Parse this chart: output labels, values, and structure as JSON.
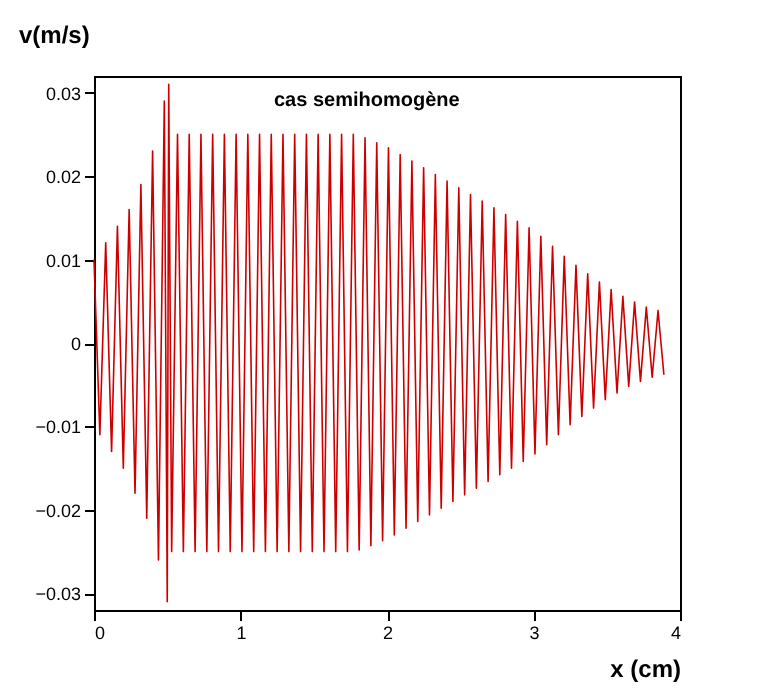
{
  "chart_data": {
    "type": "line",
    "xlabel": "x (cm)",
    "ylabel": "v(m/s)",
    "annotations": [
      "cas semihomogène"
    ],
    "xlim": [
      0,
      4
    ],
    "xticks": [
      0,
      1,
      2,
      3,
      4
    ],
    "ylim": [
      -0.032,
      0.032
    ],
    "yticks": [
      -0.03,
      -0.02,
      -0.01,
      0,
      0.01,
      0.02,
      0.03
    ],
    "grid": false,
    "marker": "none",
    "line_style": "solid",
    "series": [
      {
        "color": "#cc0000",
        "x": [
          0.0,
          0.04,
          0.08,
          0.12,
          0.16,
          0.2,
          0.24,
          0.28,
          0.32,
          0.36,
          0.4,
          0.44,
          0.48,
          0.5,
          0.51,
          0.53,
          0.57,
          0.61,
          0.65,
          0.69,
          0.73,
          0.77,
          0.81,
          0.85,
          0.89,
          0.93,
          0.97,
          1.01,
          1.05,
          1.09,
          1.13,
          1.17,
          1.21,
          1.25,
          1.29,
          1.33,
          1.37,
          1.41,
          1.45,
          1.49,
          1.53,
          1.57,
          1.61,
          1.65,
          1.69,
          1.73,
          1.77,
          1.81,
          1.85,
          1.89,
          1.93,
          1.97,
          2.01,
          2.05,
          2.09,
          2.13,
          2.17,
          2.21,
          2.25,
          2.29,
          2.33,
          2.37,
          2.41,
          2.45,
          2.49,
          2.53,
          2.57,
          2.61,
          2.65,
          2.69,
          2.73,
          2.77,
          2.81,
          2.85,
          2.89,
          2.93,
          2.97,
          3.01,
          3.05,
          3.09,
          3.13,
          3.17,
          3.21,
          3.25,
          3.29,
          3.33,
          3.37,
          3.41,
          3.45,
          3.49,
          3.53,
          3.57,
          3.61,
          3.65,
          3.69,
          3.73,
          3.77,
          3.81,
          3.85,
          3.89
        ],
        "values": [
          0.01,
          -0.011,
          0.012,
          -0.013,
          0.014,
          -0.015,
          0.016,
          -0.018,
          0.019,
          -0.021,
          0.023,
          -0.026,
          0.029,
          -0.031,
          0.031,
          -0.025,
          0.025,
          -0.025,
          0.025,
          -0.025,
          0.025,
          -0.025,
          0.025,
          -0.025,
          0.025,
          -0.025,
          0.025,
          -0.025,
          0.025,
          -0.025,
          0.025,
          -0.025,
          0.025,
          -0.025,
          0.025,
          -0.025,
          0.025,
          -0.025,
          0.025,
          -0.025,
          0.025,
          -0.025,
          0.025,
          -0.025,
          0.025,
          -0.025,
          0.025,
          -0.0248,
          0.0246,
          -0.0243,
          0.024,
          -0.0237,
          0.0234,
          -0.023,
          0.0226,
          -0.0222,
          0.0218,
          -0.0214,
          0.021,
          -0.0206,
          0.0202,
          -0.0198,
          0.0194,
          -0.019,
          0.0186,
          -0.0182,
          0.0178,
          -0.0174,
          0.017,
          -0.0166,
          0.0162,
          -0.0158,
          0.0154,
          -0.015,
          0.0146,
          -0.0142,
          0.0138,
          -0.0133,
          0.0128,
          -0.0122,
          0.0116,
          -0.011,
          0.0104,
          -0.0098,
          0.0093,
          -0.0088,
          0.0083,
          -0.0078,
          0.0073,
          -0.0068,
          0.0064,
          -0.006,
          0.0056,
          -0.0052,
          0.0049,
          -0.0046,
          0.0043,
          -0.0041,
          0.0039,
          -0.0038
        ]
      }
    ]
  }
}
